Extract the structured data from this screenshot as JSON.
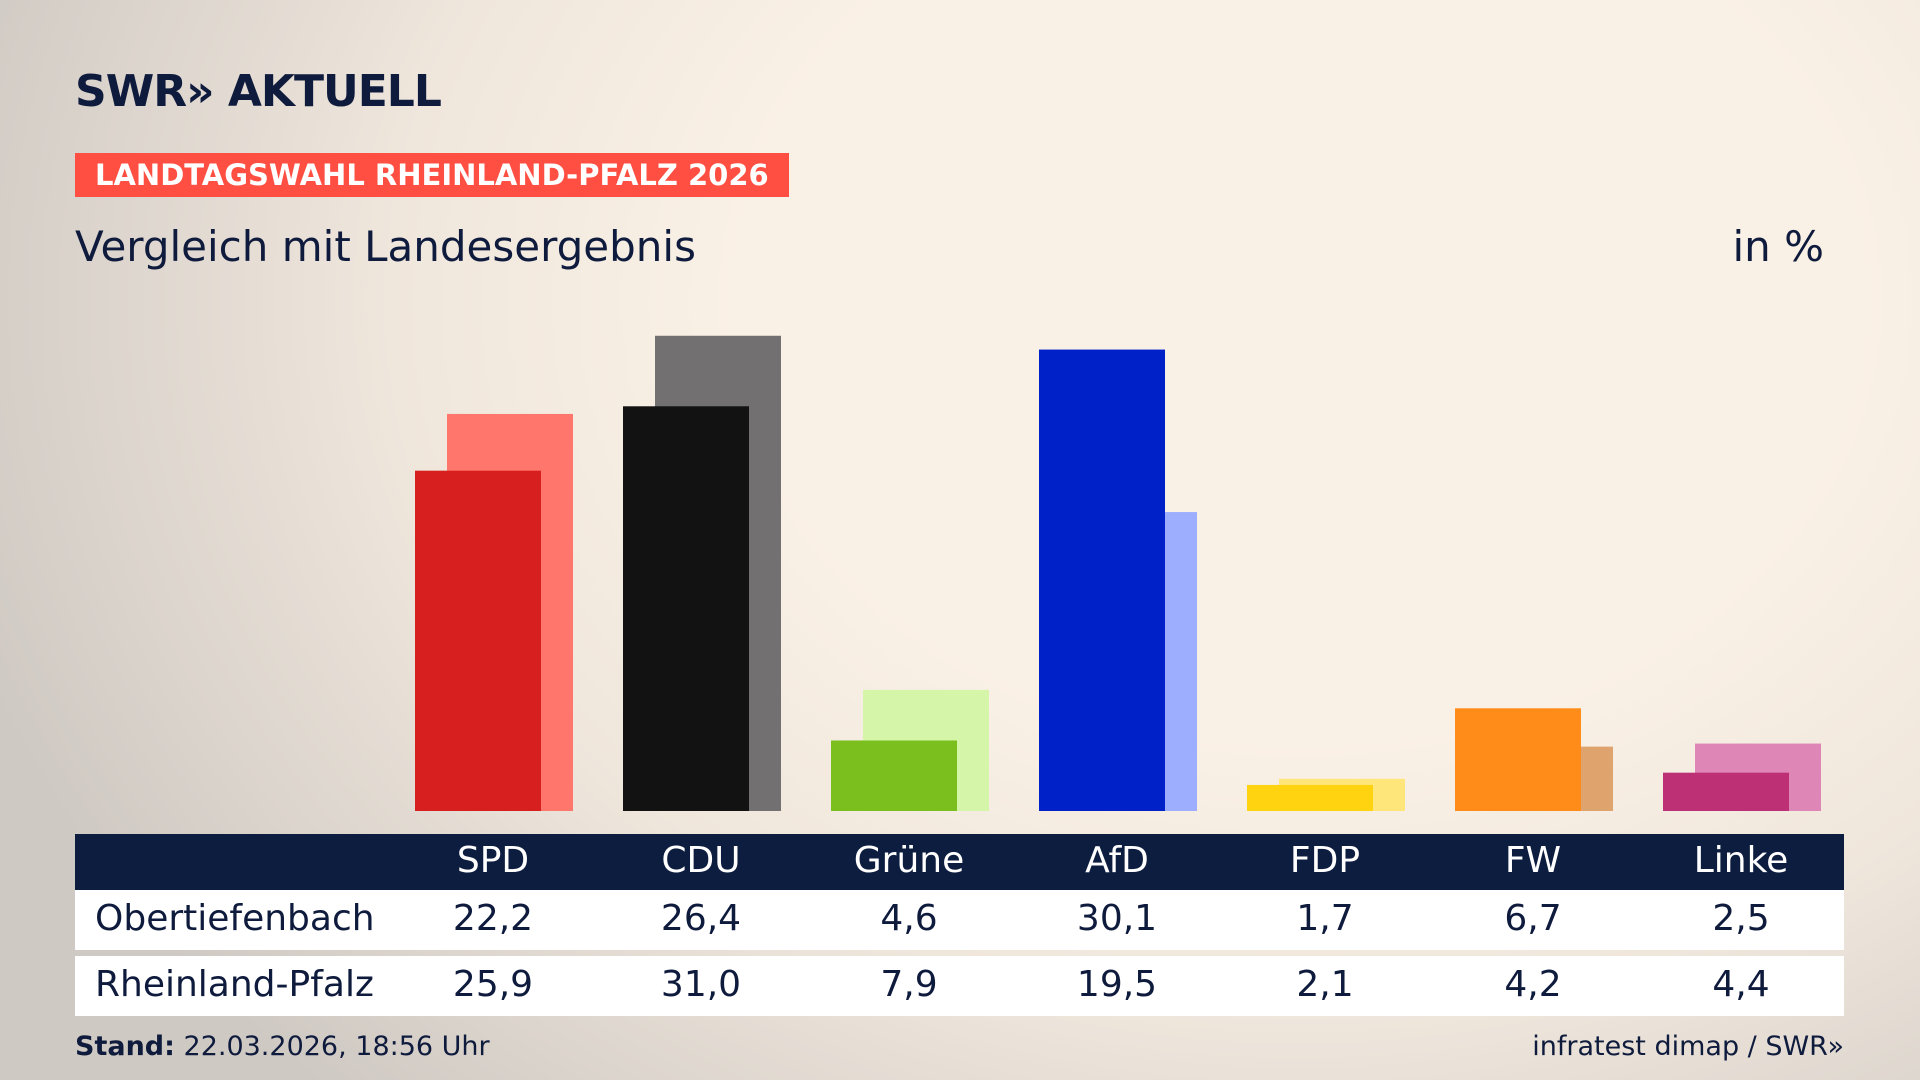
{
  "header": {
    "logo": "SWR» AKTUELL"
  },
  "chart_data": {
    "type": "bar",
    "title": "LANDTAGSWAHL RHEINLAND-PFALZ 2026",
    "subtitle": "Vergleich mit Landesergebnis",
    "unit": "in %",
    "categories": [
      "SPD",
      "CDU",
      "Grüne",
      "AfD",
      "FDP",
      "FW",
      "Linke"
    ],
    "series": [
      {
        "name": "Obertiefenbach",
        "colors": [
          "#d71f1f",
          "#121212",
          "#7abf1e",
          "#0021c8",
          "#ffd30f",
          "#ff8c18",
          "#be3075"
        ],
        "values": [
          22.2,
          26.4,
          4.6,
          30.1,
          1.7,
          6.7,
          2.5
        ],
        "value_labels": [
          "22,2",
          "26,4",
          "4,6",
          "30,1",
          "1,7",
          "6,7",
          "2,5"
        ]
      },
      {
        "name": "Rheinland-Pfalz",
        "colors": [
          "#ff766c",
          "#727070",
          "#d5f5a9",
          "#9daeff",
          "#ffe67a",
          "#dfa46e",
          "#de87b6"
        ],
        "values": [
          25.9,
          31.0,
          7.9,
          19.5,
          2.1,
          4.2,
          4.4
        ],
        "value_labels": [
          "25,9",
          "31,0",
          "7,9",
          "19,5",
          "2,1",
          "4,2",
          "4,4"
        ]
      }
    ]
  },
  "footer": {
    "stand_label": "Stand:",
    "stand": "22.03.2026, 18:56 Uhr",
    "source": "infratest dimap / SWR»"
  }
}
